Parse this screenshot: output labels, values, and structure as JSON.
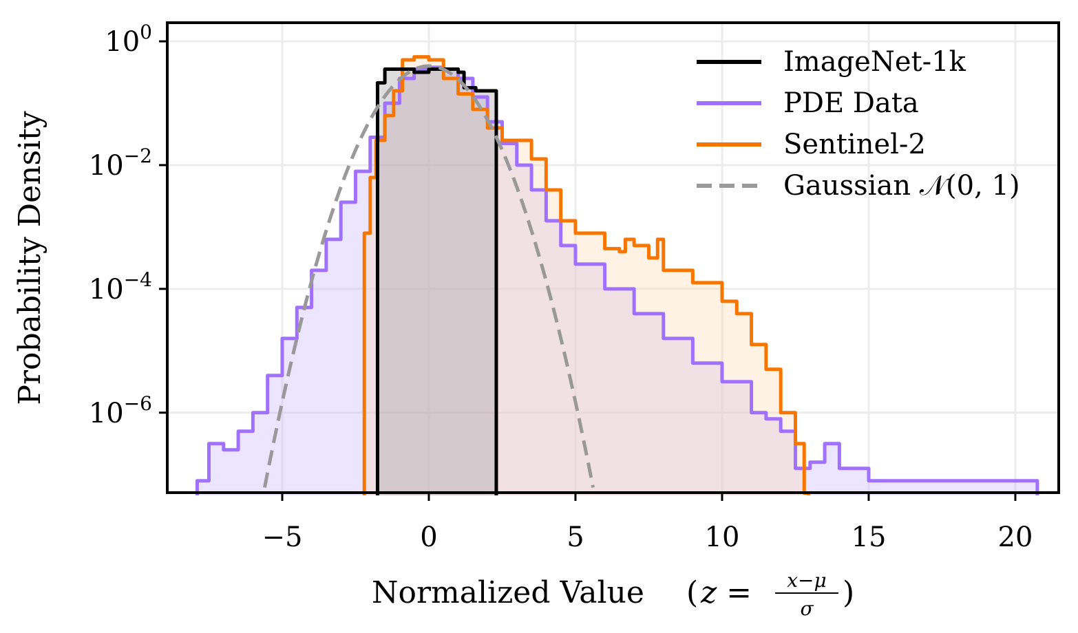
{
  "chart_data": {
    "type": "line",
    "subtype": "step-histogram",
    "title": "",
    "xlabel": "Normalized Value",
    "xlabel_formula": {
      "lhs": "z =",
      "numerator": "x−μ",
      "denominator": "σ"
    },
    "ylabel": "Probability Density",
    "xscale": "linear",
    "yscale": "log",
    "xlim": [
      -8.92,
      21.48
    ],
    "ylim": [
      5.1e-08,
      2.0
    ],
    "xticks": [
      -5,
      0,
      5,
      10,
      15,
      20
    ],
    "xtick_labels": [
      "−5",
      "0",
      "5",
      "10",
      "15",
      "20"
    ],
    "yticks_exponents": [
      0,
      -2,
      -4,
      -6
    ],
    "ytick_labels": [
      "10",
      "10",
      "10",
      "10"
    ],
    "ytick_label_exponents": [
      "0",
      "−2",
      "−4",
      "−6"
    ],
    "grid": true,
    "legend_position": "top-right",
    "series": [
      {
        "name": "ImageNet-1k",
        "color": "#000000",
        "fill": "#9e9e9e",
        "style": "solid",
        "x": [
          -1.75,
          -1.5,
          -1.0,
          -0.5,
          0,
          0.5,
          1.0,
          1.2,
          1.6,
          2.15
        ],
        "log10_y": [
          -0.67,
          -0.45,
          -0.45,
          -0.5,
          -0.45,
          -0.45,
          -0.5,
          -0.75,
          -0.8,
          -0.8
        ]
      },
      {
        "name": "PDE Data",
        "color": "#a070ff",
        "fill": "#c9b4ff",
        "style": "solid",
        "x": [
          -7.9,
          -7.5,
          -7,
          -6.5,
          -6,
          -5.5,
          -5,
          -4.5,
          -4,
          -3.5,
          -3,
          -2.5,
          -2,
          -1.5,
          -1,
          -0.5,
          0,
          0.5,
          1,
          1.5,
          2,
          2.5,
          3,
          3.5,
          4,
          4.5,
          5,
          6,
          7,
          8,
          9,
          10,
          11,
          11.5,
          12,
          12.5,
          13,
          13.5,
          14,
          15,
          16,
          17,
          19.2,
          20.6
        ],
        "log10_y": [
          -7.1,
          -6.5,
          -6.6,
          -6.3,
          -6.0,
          -5.4,
          -4.8,
          -4.3,
          -3.7,
          -3.2,
          -2.6,
          -2.1,
          -1.55,
          -1.0,
          -0.6,
          -0.45,
          -0.42,
          -0.45,
          -0.6,
          -0.9,
          -1.3,
          -1.65,
          -2.0,
          -2.4,
          -2.9,
          -3.3,
          -3.6,
          -4.0,
          -4.4,
          -4.8,
          -5.2,
          -5.5,
          -6.0,
          -6.1,
          -6.3,
          -6.9,
          -6.8,
          -6.5,
          -6.9,
          -7.1,
          -7.1,
          -7.1,
          -7.1,
          -7.1
        ]
      },
      {
        "name": "Sentinel-2",
        "color": "#f77600",
        "fill": "#fcd9b4",
        "style": "solid",
        "x": [
          -2.2,
          -2.0,
          -1.8,
          -1.5,
          -1.2,
          -0.9,
          -0.5,
          0,
          0.5,
          1,
          1.5,
          2,
          2.5,
          3,
          3.5,
          4,
          4.5,
          5,
          6,
          6.5,
          6.7,
          7,
          7.5,
          7.8,
          8,
          9,
          10,
          10.5,
          11,
          11.5,
          12,
          12.5,
          12.8
        ],
        "log10_y": [
          -3.1,
          -2.2,
          -1.6,
          -1.2,
          -0.8,
          -0.3,
          -0.25,
          -0.3,
          -0.6,
          -0.85,
          -1.1,
          -1.4,
          -1.6,
          -1.6,
          -1.9,
          -2.4,
          -2.9,
          -3.1,
          -3.35,
          -3.4,
          -3.2,
          -3.3,
          -3.5,
          -3.2,
          -3.7,
          -3.9,
          -4.2,
          -4.4,
          -4.9,
          -5.3,
          -6.0,
          -6.5,
          -7.3
        ]
      },
      {
        "name": "Gaussian 𝒩(0, 1)",
        "color": "#999999",
        "style": "dashed",
        "function": "standard-normal-pdf",
        "x_range": [
          -5.6,
          5.6
        ]
      }
    ]
  }
}
